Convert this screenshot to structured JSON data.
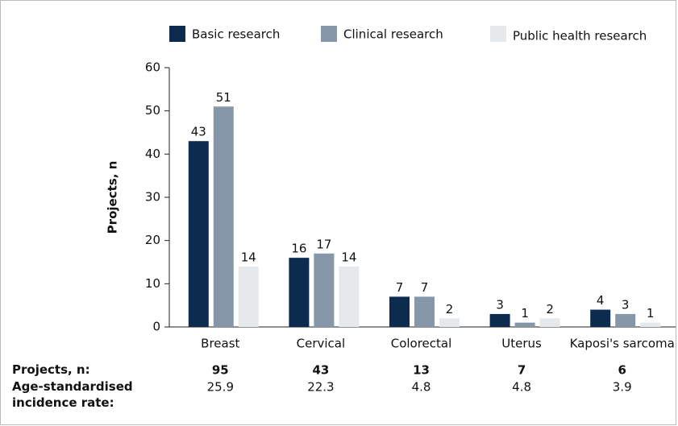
{
  "chart_data": {
    "type": "bar",
    "categories": [
      "Breast",
      "Cervical",
      "Colorectal",
      "Uterus",
      "Kaposi's sarcoma"
    ],
    "series": [
      {
        "name": "Basic research",
        "color": "#0d2b4e",
        "values": [
          43,
          16,
          7,
          3,
          4
        ]
      },
      {
        "name": "Clinical research",
        "color": "#8597a9",
        "values": [
          51,
          17,
          7,
          1,
          3
        ]
      },
      {
        "name": "Public health research",
        "color": "#e6e9ec",
        "values": [
          14,
          14,
          2,
          2,
          1
        ]
      }
    ],
    "y_label": "Projects, n",
    "ylim": [
      0,
      60
    ],
    "yticks": [
      0,
      10,
      20,
      30,
      40,
      50,
      60
    ],
    "table": {
      "rows": [
        {
          "label": "Projects, n:",
          "values": [
            "95",
            "43",
            "13",
            "7",
            "6"
          ],
          "bold": true
        },
        {
          "label": "Age-standardised incidence rate:",
          "values": [
            "25.9",
            "22.3",
            "4.8",
            "4.8",
            "3.9"
          ],
          "bold": false
        }
      ]
    }
  }
}
